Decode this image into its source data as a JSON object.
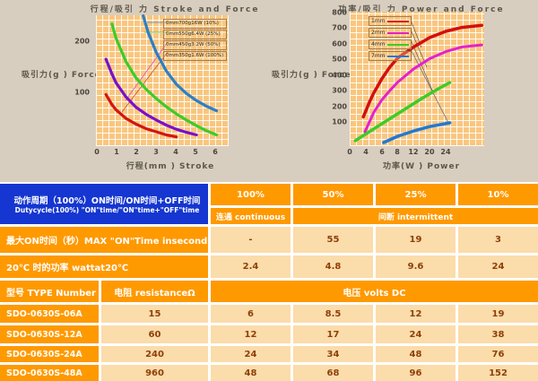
{
  "colors": {
    "page_top_bg": "#d8cec0",
    "plot_bg": "#f9c67e",
    "grid_line": "#ffffff",
    "table_orange": "#ff9900",
    "table_blue": "#1536d0",
    "table_peach": "#fbdcab",
    "value_text": "#8f3f08"
  },
  "left_chart": {
    "title": "行程/吸引 力 Stroke and Force",
    "y_label": "吸引力(g ) Force",
    "x_label": "行程(mm ) Stroke",
    "y_ticks": [
      "200",
      "100"
    ],
    "x_ticks": [
      "0",
      "1",
      "2",
      "3",
      "4",
      "5",
      "6"
    ],
    "legend": [
      "0mm700g16W (10%)",
      "0mm550g6.4W (25%)",
      "0mm450g3.2W (50%)",
      "0mm350g1.6W (100%)"
    ]
  },
  "right_chart": {
    "title": "功率/吸引 力 Power and Force",
    "y_label": "吸引力(g ) Force",
    "x_label": "功率(W ) Power",
    "y_ticks": [
      "800",
      "700",
      "600",
      "500",
      "400",
      "300",
      "200",
      "100"
    ],
    "x_ticks": [
      "0",
      "4",
      "6",
      "8",
      "12",
      "20",
      "24"
    ],
    "legend": [
      "1mm",
      "2mm",
      "4mm",
      "7mm"
    ]
  },
  "chart_data": [
    {
      "type": "line",
      "title": "行程/吸引力 Stroke and Force",
      "xlabel": "行程(mm) Stroke",
      "ylabel": "吸引力(g) Force",
      "xlim": [
        0,
        6.6
      ],
      "ylim": [
        -7,
        249
      ],
      "grid": true,
      "legend_position": "top-right",
      "series": [
        {
          "name": "0mm700g16W (10%)",
          "color": "#2e7fc4",
          "width": 3.2,
          "points": [
            [
              2.35,
              248
            ],
            [
              2.6,
              215
            ],
            [
              3,
              176
            ],
            [
              3.5,
              140
            ],
            [
              4,
              114
            ],
            [
              4.5,
              96
            ],
            [
              5,
              82
            ],
            [
              5.5,
              71
            ],
            [
              6,
              62
            ]
          ]
        },
        {
          "name": "0mm550g6.4W (25%)",
          "color": "#3ecb28",
          "width": 3.2,
          "points": [
            [
              0.8,
              232
            ],
            [
              1,
              204
            ],
            [
              1.5,
              158
            ],
            [
              2,
              126
            ],
            [
              2.5,
              104
            ],
            [
              3,
              86
            ],
            [
              3.5,
              70
            ],
            [
              4,
              56
            ],
            [
              4.5,
              44
            ],
            [
              5,
              33
            ],
            [
              5.5,
              23
            ],
            [
              6,
              15
            ]
          ]
        },
        {
          "name": "0mm450g3.2W (50%)",
          "color": "#7a10c8",
          "width": 3.2,
          "points": [
            [
              0.5,
              163
            ],
            [
              0.8,
              134
            ],
            [
              1,
              117
            ],
            [
              1.5,
              89
            ],
            [
              2,
              69
            ],
            [
              2.5,
              55
            ],
            [
              3,
              44
            ],
            [
              3.5,
              34
            ],
            [
              4,
              26
            ],
            [
              4.5,
              20
            ],
            [
              5,
              15
            ]
          ]
        },
        {
          "name": "0mm350g1.6W (100%)",
          "color": "#d41510",
          "width": 3.2,
          "points": [
            [
              0.5,
              94
            ],
            [
              0.8,
              74
            ],
            [
              1,
              64
            ],
            [
              1.5,
              47
            ],
            [
              2,
              36
            ],
            [
              2.5,
              27
            ],
            [
              3,
              21
            ],
            [
              3.5,
              15
            ],
            [
              4,
              11
            ]
          ]
        }
      ]
    },
    {
      "type": "line",
      "title": "功率/吸引力 Power and Force",
      "xlabel": "功率(W) Power",
      "ylabel": "吸引力(g) Force",
      "xlim": [
        0,
        33.6
      ],
      "ylim": [
        -55,
        806
      ],
      "grid": true,
      "legend_position": "top-left",
      "series": [
        {
          "name": "1mm",
          "color": "#d40f0f",
          "width": 3.5,
          "points": [
            [
              3.4,
              132
            ],
            [
              5,
              230
            ],
            [
              6,
              285
            ],
            [
              8,
              375
            ],
            [
              10,
              450
            ],
            [
              12,
              510
            ],
            [
              16,
              580
            ],
            [
              20,
              640
            ],
            [
              24,
              680
            ],
            [
              28,
              705
            ],
            [
              33,
              719
            ]
          ]
        },
        {
          "name": "2mm",
          "color": "#e421ce",
          "width": 3,
          "points": [
            [
              3.8,
              37
            ],
            [
              6,
              160
            ],
            [
              8,
              240
            ],
            [
              10,
              300
            ],
            [
              12,
              355
            ],
            [
              16,
              440
            ],
            [
              20,
              505
            ],
            [
              24,
              550
            ],
            [
              28,
              580
            ],
            [
              33,
              593
            ]
          ]
        },
        {
          "name": "4mm",
          "color": "#3ecb28",
          "width": 3.5,
          "points": [
            [
              1.4,
              -20
            ],
            [
              6,
              55
            ],
            [
              10,
              120
            ],
            [
              14,
              185
            ],
            [
              18,
              250
            ],
            [
              22,
              310
            ],
            [
              25,
              352
            ]
          ]
        },
        {
          "name": "7mm",
          "color": "#2478d0",
          "width": 3.5,
          "points": [
            [
              8.5,
              -32
            ],
            [
              12,
              8
            ],
            [
              16,
              42
            ],
            [
              20,
              70
            ],
            [
              25,
              94
            ]
          ]
        }
      ]
    }
  ],
  "table": {
    "duty": {
      "label_zh": "动作周期（100%）ON时间/ON时间+OFF时间",
      "label_en": "Dutycycle(100%) \"ON\"time/\"ON\"time+\"OFF\"time",
      "percents": [
        "100%",
        "50%",
        "25%",
        "10%"
      ],
      "continuous": "连通 continuous",
      "intermittent": "间断 intermittent"
    },
    "rows": {
      "max_on": {
        "label": "最大ON时间（秒）MAX \"ON\"Time insecond",
        "values": [
          "-",
          "55",
          "19",
          "3"
        ]
      },
      "watt": {
        "label": "20℃ 时的功率  wattat20℃",
        "values": [
          "2.4",
          "4.8",
          "9.6",
          "24"
        ]
      }
    },
    "headers": {
      "type": "型号 TYPE Number",
      "resistance": "电阻 resistanceΩ",
      "volts": "电压  volts DC"
    },
    "models": [
      {
        "type": "SDO-0630S-06A",
        "resistance": "15",
        "volts": [
          "6",
          "8.5",
          "12",
          "19"
        ]
      },
      {
        "type": "SDO-0630S-12A",
        "resistance": "60",
        "volts": [
          "12",
          "17",
          "24",
          "38"
        ]
      },
      {
        "type": "SDO-0630S-24A",
        "resistance": "240",
        "volts": [
          "24",
          "34",
          "48",
          "76"
        ]
      },
      {
        "type": "SDO-0630S-48A",
        "resistance": "960",
        "volts": [
          "48",
          "68",
          "96",
          "152"
        ]
      }
    ]
  }
}
